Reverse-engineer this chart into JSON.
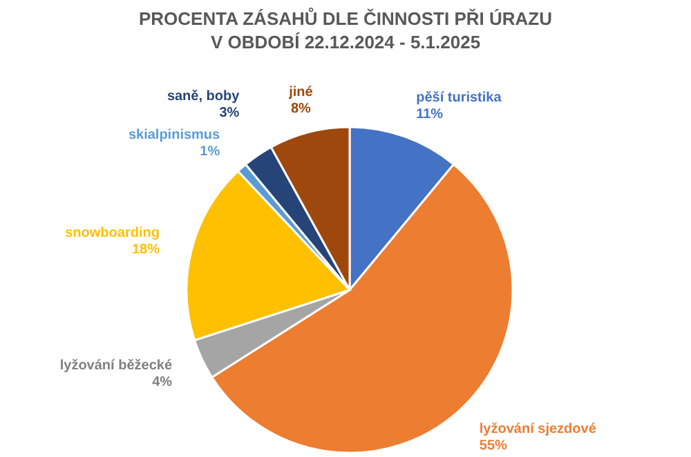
{
  "chart_data": {
    "type": "pie",
    "title": "PROCENTA ZÁSAHŮ DLE ČINNOSTI PŘI ÚRAZU\nV OBDOBÍ 22.12.2024 - 5.1.2025",
    "categories": [
      "pěší turistika",
      "lyžování sjezdové",
      "lyžování běžecké",
      "snowboarding",
      "skialpinismus",
      "saně, boby",
      "jiné"
    ],
    "values": [
      11,
      55,
      4,
      18,
      1,
      3,
      8
    ],
    "colors": [
      "#4472c4",
      "#ed7d31",
      "#a5a5a5",
      "#ffc000",
      "#5b9bd5",
      "#264478",
      "#9e480e"
    ],
    "value_labels": [
      "11%",
      "55%",
      "4%",
      "18%",
      "1%",
      "3%",
      "8%"
    ]
  }
}
